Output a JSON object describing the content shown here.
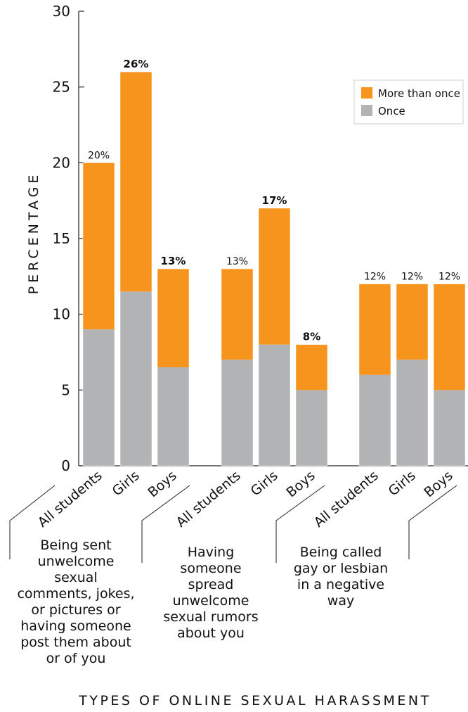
{
  "chart_data": {
    "type": "bar",
    "stacked": true,
    "ylabel": "PERCENTAGE",
    "xlabel": "TYPES OF ONLINE SEXUAL HARASSMENT",
    "ylim": [
      0,
      30
    ],
    "yticks": [
      0,
      5,
      10,
      15,
      20,
      25,
      30
    ],
    "legend_position": "top-right",
    "series": [
      {
        "name": "Once",
        "color": "#b1b3b5"
      },
      {
        "name": "More than once",
        "color": "#f7941d"
      }
    ],
    "groups": [
      {
        "label_lines": [
          "Being sent",
          "unwelcome",
          "sexual",
          "comments, jokes,",
          "or pictures or",
          "having someone",
          "post them about",
          "or of you"
        ],
        "bars": [
          {
            "category": "All students",
            "once": 9,
            "more_than_once": 11,
            "total_label": "20%",
            "bold": false
          },
          {
            "category": "Girls",
            "once": 11.5,
            "more_than_once": 14.5,
            "total_label": "26%",
            "bold": true
          },
          {
            "category": "Boys",
            "once": 6.5,
            "more_than_once": 6.5,
            "total_label": "13%",
            "bold": true
          }
        ]
      },
      {
        "label_lines": [
          "Having",
          "someone",
          "spread",
          "unwelcome",
          "sexual rumors",
          "about you"
        ],
        "bars": [
          {
            "category": "All students",
            "once": 7,
            "more_than_once": 6,
            "total_label": "13%",
            "bold": false
          },
          {
            "category": "Girls",
            "once": 8,
            "more_than_once": 9,
            "total_label": "17%",
            "bold": true
          },
          {
            "category": "Boys",
            "once": 5,
            "more_than_once": 3,
            "total_label": "8%",
            "bold": true
          }
        ]
      },
      {
        "label_lines": [
          "Being called",
          "gay or lesbian",
          "in a negative",
          "way"
        ],
        "bars": [
          {
            "category": "All students",
            "once": 6,
            "more_than_once": 6,
            "total_label": "12%",
            "bold": false
          },
          {
            "category": "Girls",
            "once": 7,
            "more_than_once": 5,
            "total_label": "12%",
            "bold": false
          },
          {
            "category": "Boys",
            "once": 5,
            "more_than_once": 7,
            "total_label": "12%",
            "bold": false
          }
        ]
      }
    ]
  }
}
